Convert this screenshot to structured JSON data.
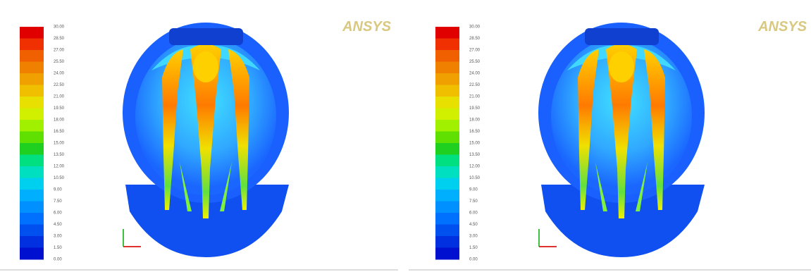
{
  "panels": [
    {
      "colorbar": {
        "labels": [
          "30.00",
          "28.50",
          "27.00",
          "25.50",
          "24.00",
          "22.50",
          "21.00",
          "19.50",
          "18.00",
          "16.50",
          "15.00",
          "13.50",
          "12.00",
          "10.50",
          "9.00",
          "7.50",
          "6.00",
          "4.50",
          "3.00",
          "1.50",
          "0.00"
        ]
      },
      "logo": "ANSYS"
    },
    {
      "colorbar": {
        "labels": [
          "30.00",
          "28.50",
          "27.00",
          "25.50",
          "24.00",
          "22.50",
          "21.00",
          "19.50",
          "18.00",
          "16.50",
          "15.00",
          "13.50",
          "12.00",
          "10.50",
          "9.00",
          "7.50",
          "6.00",
          "4.50",
          "3.00",
          "1.50",
          "0.00"
        ]
      },
      "logo": "ANSYS"
    }
  ]
}
